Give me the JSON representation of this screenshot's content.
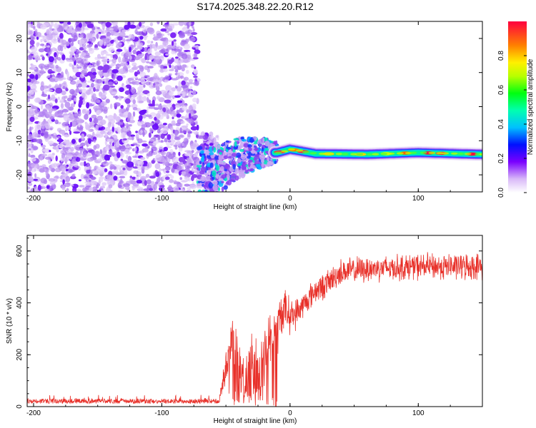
{
  "title": "S174.2025.348.22.20.R12",
  "chart_data": [
    {
      "type": "heatmap",
      "xlabel": "Height of straight line (km)",
      "ylabel": "Frequency (Hz)",
      "xlim": [
        -205,
        150
      ],
      "ylim": [
        -25,
        25
      ],
      "xticks": [
        -200,
        -100,
        0,
        100
      ],
      "yticks": [
        -20,
        -10,
        0,
        10,
        20
      ],
      "xtick_labels": [
        "-200",
        "-100",
        "0",
        "100"
      ],
      "ytick_labels": [
        "-20",
        "-10",
        "0",
        "10",
        "20"
      ],
      "colorbar": {
        "label": "Normalized spectral amplitude",
        "range": [
          0,
          1
        ],
        "ticks": [
          0.0,
          0.2,
          0.4,
          0.6,
          0.8
        ],
        "tick_labels": [
          "0.0",
          "0.2",
          "0.4",
          "0.6",
          "0.8"
        ]
      },
      "regions": [
        {
          "name": "noise",
          "x_range": [
            -205,
            -65
          ],
          "freq_range": [
            -25,
            25
          ],
          "amplitude": "low (0.0-0.2)"
        },
        {
          "name": "transition",
          "x_range": [
            -65,
            -10
          ],
          "freq_range": [
            -25,
            -7
          ],
          "amplitude": "0.1-0.4"
        },
        {
          "name": "carrier",
          "x_range": [
            -10,
            150
          ],
          "freq_center": -14,
          "amplitude": "0.5-1.0"
        }
      ],
      "carrier_track": [
        {
          "x": -60,
          "f": -20
        },
        {
          "x": -50,
          "f": -17
        },
        {
          "x": -40,
          "f": -15
        },
        {
          "x": -30,
          "f": -14
        },
        {
          "x": -20,
          "f": -13.5
        },
        {
          "x": -10,
          "f": -13.5
        },
        {
          "x": 0,
          "f": -12.5
        },
        {
          "x": 20,
          "f": -13.8
        },
        {
          "x": 60,
          "f": -14
        },
        {
          "x": 100,
          "f": -13.5
        },
        {
          "x": 150,
          "f": -14
        }
      ]
    },
    {
      "type": "line",
      "xlabel": "Height of straight line (km)",
      "ylabel": "SNR (10 * v/v)",
      "xlim": [
        -205,
        150
      ],
      "ylim": [
        0,
        660
      ],
      "xticks": [
        -200,
        -100,
        0,
        100
      ],
      "yticks": [
        0,
        200,
        400,
        600
      ],
      "xtick_labels": [
        "-200",
        "-100",
        "0",
        "100"
      ],
      "ytick_labels": [
        "0",
        "200",
        "400",
        "600"
      ],
      "color": "#e8312a",
      "series": [
        {
          "name": "SNR",
          "x": [
            -205,
            -150,
            -100,
            -70,
            -55,
            -45,
            -40,
            -35,
            -30,
            -25,
            -20,
            -15,
            -10,
            -5,
            0,
            5,
            10,
            15,
            20,
            25,
            30,
            40,
            50,
            60,
            70,
            80,
            100,
            120,
            140,
            150
          ],
          "values": [
            15,
            15,
            15,
            15,
            40,
            250,
            150,
            90,
            180,
            110,
            200,
            270,
            300,
            380,
            350,
            360,
            390,
            420,
            450,
            460,
            480,
            520,
            525,
            530,
            535,
            535,
            540,
            540,
            540,
            540
          ],
          "noise_band": [
            10,
            10,
            10,
            10,
            40,
            150,
            140,
            120,
            150,
            150,
            150,
            140,
            120,
            100,
            80,
            70,
            60,
            60,
            60,
            60,
            60,
            60,
            60,
            60,
            60,
            60,
            60,
            60,
            60,
            60
          ]
        }
      ]
    }
  ]
}
